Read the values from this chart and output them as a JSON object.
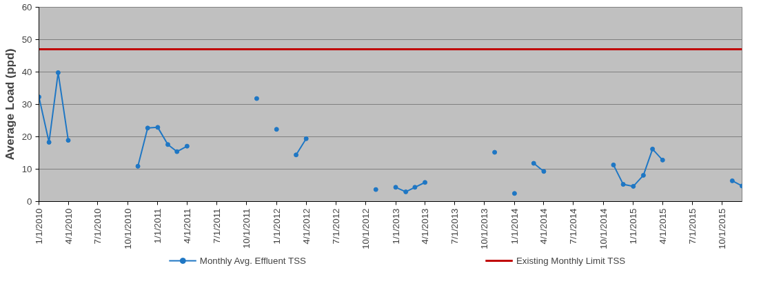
{
  "chart_data": {
    "type": "line",
    "ylabel": "Average Load (ppd)",
    "x": [
      "2010-01",
      "2010-02",
      "2010-03",
      "2010-04",
      "2010-05",
      "2010-11",
      "2010-12",
      "2011-01",
      "2011-02",
      "2011-03",
      "2011-04",
      "2011-05",
      "2011-11",
      "2011-12",
      "2012-01",
      "2012-02",
      "2012-03",
      "2012-04",
      "2012-05",
      "2012-11",
      "2012-12",
      "2013-01",
      "2013-02",
      "2013-03",
      "2013-04",
      "2013-05",
      "2013-11",
      "2013-12",
      "2014-01",
      "2014-02",
      "2014-03",
      "2014-04",
      "2014-05",
      "2014-11",
      "2014-12",
      "2015-01",
      "2015-02",
      "2015-03",
      "2015-04",
      "2015-05",
      "2015-11",
      "2015-12"
    ],
    "series": [
      {
        "name": "Monthly Avg. Effluent TSS",
        "color": "#1f77c4",
        "values": [
          32.3,
          18.3,
          39.8,
          18.9,
          null,
          10.9,
          22.7,
          22.9,
          17.6,
          15.4,
          17.1,
          null,
          31.8,
          null,
          22.3,
          null,
          14.4,
          19.4,
          null,
          3.7,
          null,
          4.4,
          3.0,
          4.4,
          5.9,
          null,
          15.2,
          null,
          2.5,
          null,
          11.8,
          9.3,
          null,
          11.3,
          5.3,
          4.7,
          8.1,
          16.2,
          12.8,
          null,
          6.4,
          4.8
        ]
      }
    ],
    "ref_lines": [
      {
        "axis": "y",
        "value": 47,
        "label": "Existing Monthly Limit TSS",
        "color": "#c00000"
      }
    ],
    "xlim": [
      "2010-01-01",
      "2015-12-01"
    ],
    "xticks": [
      {
        "value": "2010-01-01",
        "label": "1/1/2010"
      },
      {
        "value": "2010-04-01",
        "label": "4/1/2010"
      },
      {
        "value": "2010-07-01",
        "label": "7/1/2010"
      },
      {
        "value": "2010-10-01",
        "label": "10/1/2010"
      },
      {
        "value": "2011-01-01",
        "label": "1/1/2011"
      },
      {
        "value": "2011-04-01",
        "label": "4/1/2011"
      },
      {
        "value": "2011-07-01",
        "label": "7/1/2011"
      },
      {
        "value": "2011-10-01",
        "label": "10/1/2011"
      },
      {
        "value": "2012-01-01",
        "label": "1/1/2012"
      },
      {
        "value": "2012-04-01",
        "label": "4/1/2012"
      },
      {
        "value": "2012-07-01",
        "label": "7/1/2012"
      },
      {
        "value": "2012-10-01",
        "label": "10/1/2012"
      },
      {
        "value": "2013-01-01",
        "label": "1/1/2013"
      },
      {
        "value": "2013-04-01",
        "label": "4/1/2013"
      },
      {
        "value": "2013-07-01",
        "label": "7/1/2013"
      },
      {
        "value": "2013-10-01",
        "label": "10/1/2013"
      },
      {
        "value": "2014-01-01",
        "label": "1/1/2014"
      },
      {
        "value": "2014-04-01",
        "label": "4/1/2014"
      },
      {
        "value": "2014-07-01",
        "label": "7/1/2014"
      },
      {
        "value": "2014-10-01",
        "label": "10/1/2014"
      },
      {
        "value": "2015-01-01",
        "label": "1/1/2015"
      },
      {
        "value": "2015-04-01",
        "label": "4/1/2015"
      },
      {
        "value": "2015-07-01",
        "label": "7/1/2015"
      },
      {
        "value": "2015-10-01",
        "label": "10/1/2015"
      }
    ],
    "ylim": [
      0,
      60
    ],
    "yticks": [
      0,
      10,
      20,
      30,
      40,
      50,
      60
    ],
    "grid": "y",
    "legend": "bottom",
    "marker": "circle",
    "line_style": "solid"
  }
}
